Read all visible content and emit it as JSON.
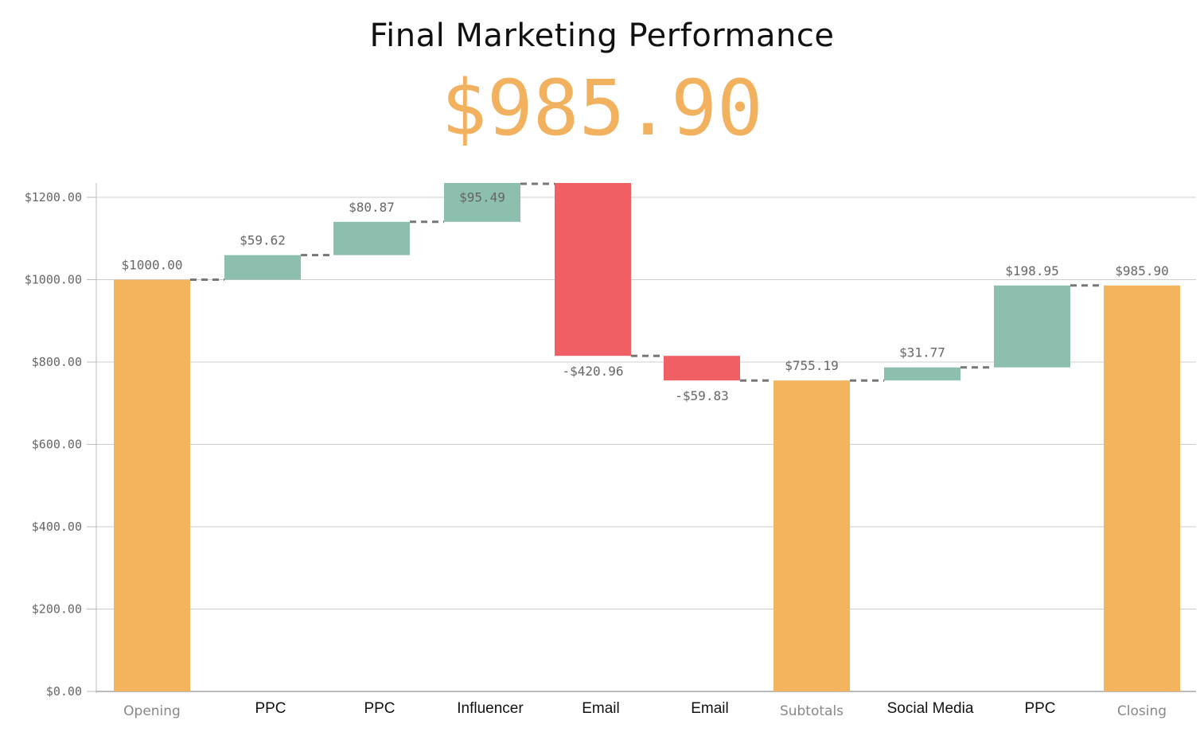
{
  "header": {
    "title": "Final Marketing Performance",
    "big_value": "$985.90"
  },
  "colors": {
    "increase": "#8dbfae",
    "decrease": "#ef5f64",
    "total": "#f3b35f",
    "connector": "#777777",
    "grid": "#cccccc",
    "title_value": "#f2b15e"
  },
  "chart_data": {
    "type": "waterfall",
    "title": "Final Marketing Performance",
    "subtitle": "$985.90",
    "xlabel": "",
    "ylabel": "",
    "ylim": [
      0,
      1236
    ],
    "grid": true,
    "y_ticks": [
      "$0.00",
      "$200.00",
      "$400.00",
      "$600.00",
      "$800.00",
      "$1000.00",
      "$1200.00"
    ],
    "y_tick_values": [
      0,
      200,
      400,
      600,
      800,
      1000,
      1200
    ],
    "categories": [
      "Opening",
      "PPC",
      "PPC",
      "Influencer",
      "Email",
      "Email",
      "Subtotals",
      "Social Media",
      "PPC",
      "Closing"
    ],
    "values": [
      1000.0,
      59.62,
      80.87,
      95.49,
      -420.96,
      -59.83,
      755.19,
      31.77,
      198.95,
      985.9
    ],
    "kinds": [
      "total",
      "increase",
      "increase",
      "increase",
      "decrease",
      "decrease",
      "total",
      "increase",
      "increase",
      "total"
    ],
    "labels": [
      "$1000.00",
      "$59.62",
      "$80.87",
      "$95.49",
      "-$420.96",
      "-$59.83",
      "$755.19",
      "$31.77",
      "$198.95",
      "$985.90"
    ],
    "start": [
      0,
      1000.0,
      1059.62,
      1140.49,
      1235.98,
      815.02,
      0,
      755.19,
      786.96,
      0
    ],
    "end": [
      1000.0,
      1059.62,
      1140.49,
      1235.98,
      815.02,
      755.19,
      755.19,
      786.96,
      985.91,
      985.9
    ],
    "legend": []
  }
}
